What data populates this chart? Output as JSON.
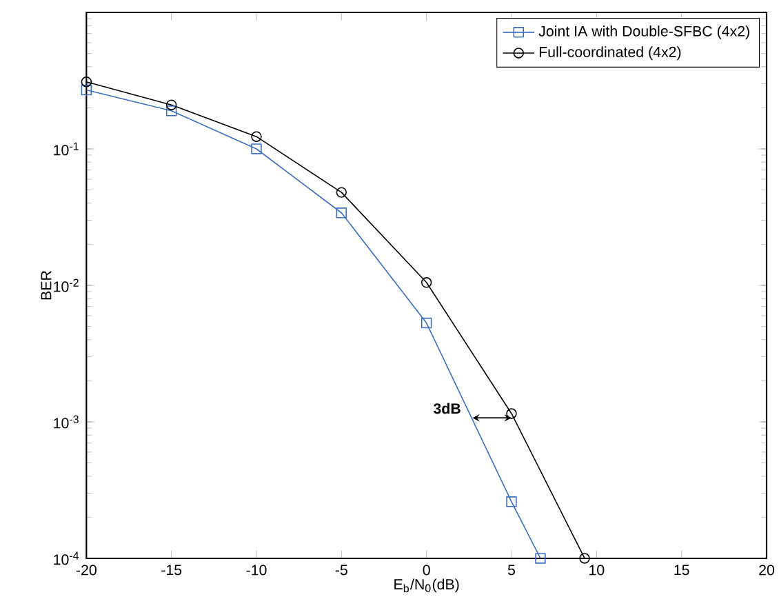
{
  "chart_data": {
    "type": "line",
    "xlabel": "E$_{b}$/N$_{0}$(dB)",
    "ylabel": "BER",
    "log": "y",
    "legend": "top right",
    "grid": false,
    "xlim": [
      -20,
      20
    ],
    "xticks": [
      -20,
      -15,
      -10,
      -5,
      0,
      5,
      10,
      15,
      20
    ],
    "ylim": [
      0.0001,
      1
    ],
    "yticks": [
      {
        "value": 0.0001,
        "label": "10$^{-4}$"
      },
      {
        "value": 0.001,
        "label": "10$^{-3}$"
      },
      {
        "value": 0.01,
        "label": "10$^{-2}$"
      },
      {
        "value": 0.1,
        "label": "10$^{-1}$"
      },
      {
        "value": 1,
        "label": null
      }
    ],
    "series": [
      {
        "name": "Joint IA with Double-SFBC (4x2)",
        "color": "#3a6fc4",
        "marker": "square",
        "x": [
          -20,
          -15,
          -10,
          -5,
          0,
          5,
          6.7
        ],
        "values": [
          0.27,
          0.19,
          0.1,
          0.034,
          0.0053,
          0.00026,
          0.0001
        ]
      },
      {
        "name": "Full-coordinated (4x2)",
        "color": "#000000",
        "marker": "circle",
        "x": [
          -20,
          -15,
          -10,
          -5,
          0,
          5,
          9.3
        ],
        "values": [
          0.31,
          0.21,
          0.123,
          0.048,
          0.0105,
          0.00115,
          0.0001
        ]
      }
    ],
    "annotations": [
      {
        "text": "3dB",
        "x": 2.7,
        "y": 0.00107
      }
    ]
  }
}
